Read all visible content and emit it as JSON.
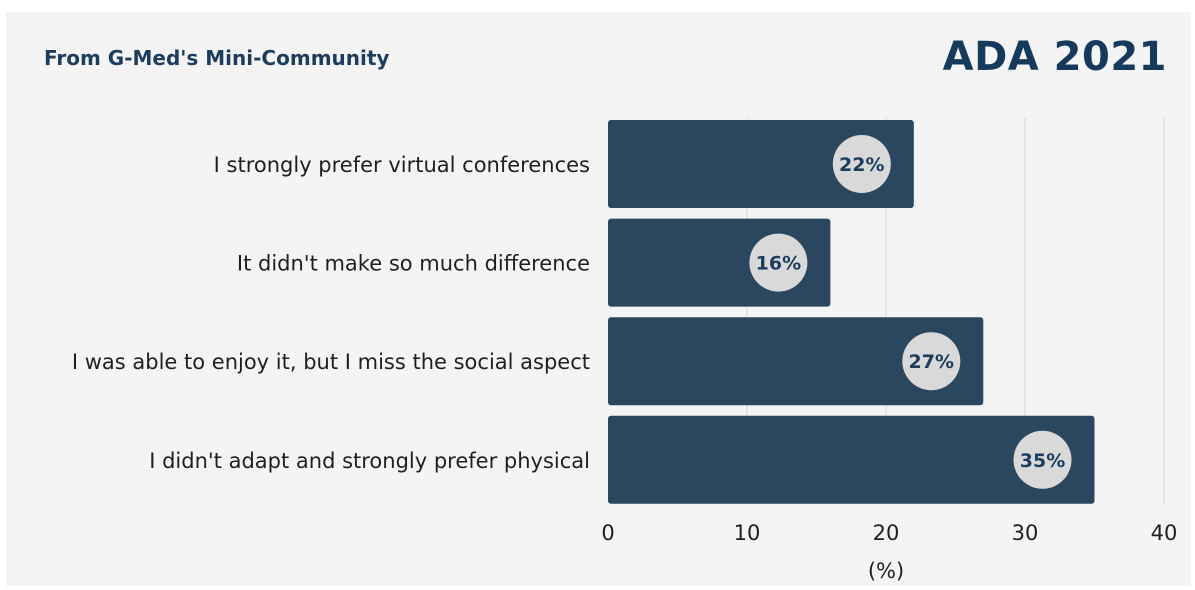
{
  "header": {
    "source": "From G-Med's Mini-Community",
    "event": "ADA 2021"
  },
  "colors": {
    "bar": "#2b465f",
    "badge": "#d9d9d9",
    "badge_text": "#1c3d5e",
    "grid": "#d6d6d6",
    "panel": "#f4f4f4"
  },
  "chart_data": {
    "type": "bar",
    "orientation": "horizontal",
    "categories": [
      "I strongly prefer virtual conferences",
      "It didn't make so much difference",
      "I was able to enjoy it, but I miss the social aspect",
      "I didn't adapt and strongly prefer physical"
    ],
    "values": [
      22,
      16,
      27,
      35
    ],
    "value_labels": [
      "22%",
      "16%",
      "27%",
      "35%"
    ],
    "xlabel": "(%)",
    "ylabel": "",
    "xlim": [
      0,
      40
    ],
    "xticks": [
      0,
      10,
      20,
      30,
      40
    ],
    "grid": true
  }
}
